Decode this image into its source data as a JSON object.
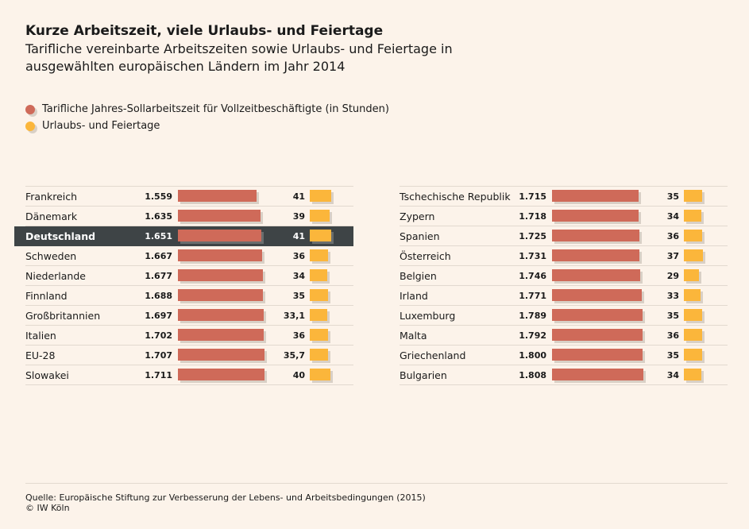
{
  "title": "Kurze Arbeitszeit, viele Urlaubs- und Feiertage",
  "subtitle": "Tarifliche vereinbarte Arbeitszeiten sowie Urlaubs- und Feiertage in ausgewählten europäischen Ländern im Jahr 2014",
  "legend": [
    {
      "label": "Tarifliche Jahres-Sollarbeitszeit für Vollzeitbeschäftigte (in Stunden)",
      "color": "#cf6a59"
    },
    {
      "label": "Urlaubs- und Feiertage",
      "color": "#fbb63b"
    }
  ],
  "chart_data": {
    "type": "bar",
    "highlight": "Deutschland",
    "series": [
      {
        "name": "Tarifliche Jahres-Sollarbeitszeit für Vollzeitbeschäftigte (in Stunden)",
        "color": "#cf6a59"
      },
      {
        "name": "Urlaubs- und Feiertage",
        "color": "#fbb63b"
      }
    ],
    "tables": [
      {
        "rows": [
          {
            "name": "Frankreich",
            "hours": 1559,
            "hours_label": "1.559",
            "days": 41,
            "days_label": "41"
          },
          {
            "name": "Dänemark",
            "hours": 1635,
            "hours_label": "1.635",
            "days": 39,
            "days_label": "39"
          },
          {
            "name": "Deutschland",
            "hours": 1651,
            "hours_label": "1.651",
            "days": 41,
            "days_label": "41"
          },
          {
            "name": "Schweden",
            "hours": 1667,
            "hours_label": "1.667",
            "days": 36,
            "days_label": "36"
          },
          {
            "name": "Niederlande",
            "hours": 1677,
            "hours_label": "1.677",
            "days": 34,
            "days_label": "34"
          },
          {
            "name": "Finnland",
            "hours": 1688,
            "hours_label": "1.688",
            "days": 35,
            "days_label": "35"
          },
          {
            "name": "Großbritannien",
            "hours": 1697,
            "hours_label": "1.697",
            "days": 33.1,
            "days_label": "33,1"
          },
          {
            "name": "Italien",
            "hours": 1702,
            "hours_label": "1.702",
            "days": 36,
            "days_label": "36"
          },
          {
            "name": "EU-28",
            "hours": 1707,
            "hours_label": "1.707",
            "days": 35.7,
            "days_label": "35,7"
          },
          {
            "name": "Slowakei",
            "hours": 1711,
            "hours_label": "1.711",
            "days": 40,
            "days_label": "40"
          }
        ]
      },
      {
        "rows": [
          {
            "name": "Tschechische Republik",
            "hours": 1715,
            "hours_label": "1.715",
            "days": 35,
            "days_label": "35"
          },
          {
            "name": "Zypern",
            "hours": 1718,
            "hours_label": "1.718",
            "days": 34,
            "days_label": "34"
          },
          {
            "name": "Spanien",
            "hours": 1725,
            "hours_label": "1.725",
            "days": 36,
            "days_label": "36"
          },
          {
            "name": "Österreich",
            "hours": 1731,
            "hours_label": "1.731",
            "days": 37,
            "days_label": "37"
          },
          {
            "name": "Belgien",
            "hours": 1746,
            "hours_label": "1.746",
            "days": 29,
            "days_label": "29"
          },
          {
            "name": "Irland",
            "hours": 1771,
            "hours_label": "1.771",
            "days": 33,
            "days_label": "33"
          },
          {
            "name": "Luxemburg",
            "hours": 1789,
            "hours_label": "1.789",
            "days": 35,
            "days_label": "35"
          },
          {
            "name": "Malta",
            "hours": 1792,
            "hours_label": "1.792",
            "days": 36,
            "days_label": "36"
          },
          {
            "name": "Griechenland",
            "hours": 1800,
            "hours_label": "1.800",
            "days": 35,
            "days_label": "35"
          },
          {
            "name": "Bulgarien",
            "hours": 1808,
            "hours_label": "1.808",
            "days": 34,
            "days_label": "34"
          }
        ]
      }
    ]
  },
  "footer": {
    "source": "Quelle: Europäische Stiftung zur Verbesserung der Lebens- und Arbeitsbedingungen (2015)",
    "copyright": "© IW Köln"
  }
}
